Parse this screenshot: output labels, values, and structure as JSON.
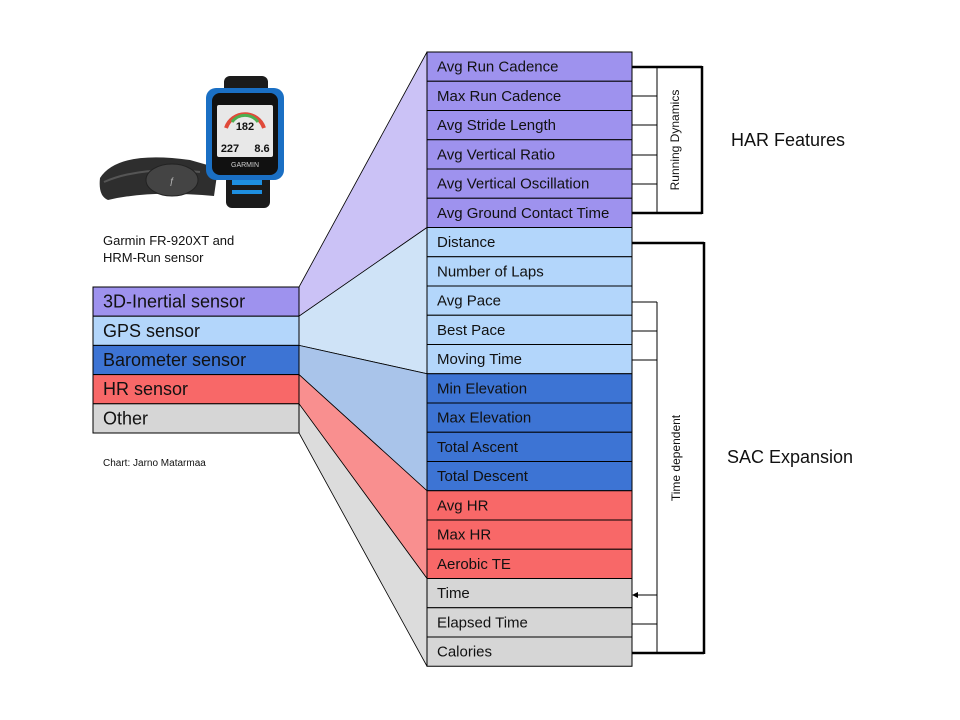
{
  "colors": {
    "inertial": "#9e92ee",
    "gps": "#b3d6fb",
    "barometer": "#3d74d4",
    "hr": "#f86868",
    "other": "#d6d6d6",
    "inertial_fan": "#cbc2f6",
    "gps_fan": "#cfe3f7",
    "barometer_fan": "#a9c4ea",
    "hr_fan": "#f98f8f",
    "other_fan": "#dcdcdc"
  },
  "device": {
    "icon": "garmin-watch-and-hrm-strap-icon",
    "brand": "GARMIN",
    "readout_top": "182",
    "readout_left": "227",
    "readout_right": "8.6"
  },
  "caption": {
    "line1": "Garmin FR-920XT and",
    "line2": "HRM-Run sensor"
  },
  "credit": "Chart: Jarno Matarmaa",
  "sensors": [
    {
      "label": "3D-Inertial sensor",
      "color_key": "inertial"
    },
    {
      "label": "GPS sensor",
      "color_key": "gps"
    },
    {
      "label": "Barometer sensor",
      "color_key": "barometer"
    },
    {
      "label": "HR sensor",
      "color_key": "hr"
    },
    {
      "label": "Other",
      "color_key": "other"
    }
  ],
  "features": [
    {
      "label": "Avg Run Cadence",
      "sensor": 0
    },
    {
      "label": "Max Run Cadence",
      "sensor": 0
    },
    {
      "label": "Avg Stride Length",
      "sensor": 0
    },
    {
      "label": "Avg Vertical Ratio",
      "sensor": 0
    },
    {
      "label": "Avg Vertical Oscillation",
      "sensor": 0
    },
    {
      "label": "Avg Ground Contact Time",
      "sensor": 0
    },
    {
      "label": "Distance",
      "sensor": 1
    },
    {
      "label": "Number of Laps",
      "sensor": 1
    },
    {
      "label": "Avg Pace",
      "sensor": 1
    },
    {
      "label": "Best Pace",
      "sensor": 1
    },
    {
      "label": "Moving Time",
      "sensor": 1
    },
    {
      "label": "Min Elevation",
      "sensor": 2
    },
    {
      "label": "Max Elevation",
      "sensor": 2
    },
    {
      "label": "Total Ascent",
      "sensor": 2
    },
    {
      "label": "Total Descent",
      "sensor": 2
    },
    {
      "label": "Avg HR",
      "sensor": 3
    },
    {
      "label": "Max HR",
      "sensor": 3
    },
    {
      "label": "Aerobic TE",
      "sensor": 3
    },
    {
      "label": "Time",
      "sensor": 4
    },
    {
      "label": "Elapsed Time",
      "sensor": 4
    },
    {
      "label": "Calories",
      "sensor": 4
    }
  ],
  "brackets": {
    "running_dynamics": "Running Dynamics",
    "time_dependent": "Time dependent"
  },
  "groups": {
    "har": "HAR Features",
    "sac": "SAC Expansion"
  }
}
